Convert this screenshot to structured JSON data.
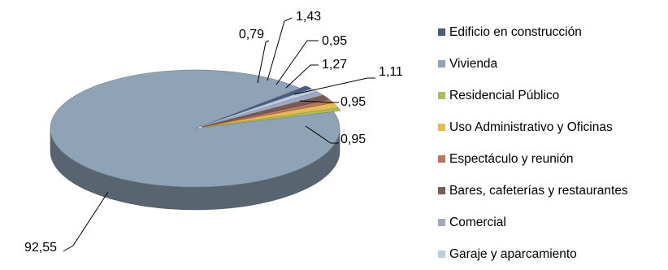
{
  "chart_data": {
    "type": "pie",
    "style": "3d-exploded",
    "legend_position": "right",
    "slices": [
      {
        "label": "Edificio en construcción",
        "value": 0.95,
        "display": "0,95",
        "color": "#4a5a80"
      },
      {
        "label": "Vivienda",
        "value": 92.55,
        "display": "92,55",
        "color": "#8ea3b5"
      },
      {
        "label": "Residencial Público",
        "value": 0.79,
        "display": "0,79",
        "color": "#a9be64"
      },
      {
        "label": "Uso Administrativo y Oficinas",
        "value": 1.43,
        "display": "1,43",
        "color": "#e6bc52"
      },
      {
        "label": "Espectáculo y reunión",
        "value": 0.95,
        "display": "0,95",
        "color": "#b8775e"
      },
      {
        "label": "Bares, cafeterías y restaurantes",
        "value": 1.27,
        "display": "1,27",
        "color": "#7a5a52"
      },
      {
        "label": "Comercial",
        "value": 1.11,
        "display": "1,11",
        "color": "#a2a8c4"
      },
      {
        "label": "Garaje y aparcamiento",
        "value": 0.95,
        "display": "0,95",
        "color": "#b9cfe0"
      }
    ]
  }
}
